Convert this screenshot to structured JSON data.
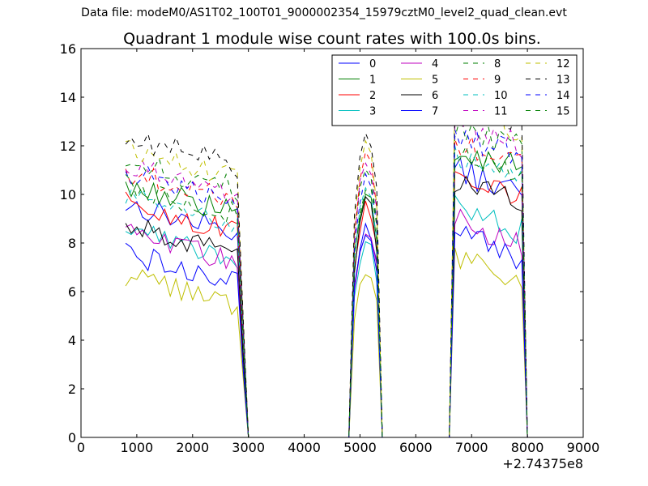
{
  "page": {
    "suptitle": "Data file: modeM0/AS1T02_100T01_9000002354_15979cztM0_level2_quad_clean.evt"
  },
  "chart_data": {
    "type": "line",
    "title": "Quadrant 1 module wise count rates with 100.0s bins.",
    "xlabel": "",
    "ylabel": "",
    "x_offset_label": "+2.74375e8",
    "xlim": [
      0,
      9000
    ],
    "ylim": [
      0,
      16
    ],
    "xticks": [
      0,
      1000,
      2000,
      3000,
      4000,
      5000,
      6000,
      7000,
      8000,
      9000
    ],
    "yticks": [
      0,
      2,
      4,
      6,
      8,
      10,
      12,
      14,
      16
    ],
    "grid": false,
    "legend_position": "top-right",
    "legend_columns": 4,
    "segments": [
      {
        "start": 800,
        "end": 2800,
        "step": 100
      },
      {
        "start": 4900,
        "end": 5300,
        "step": 100
      },
      {
        "start": 6700,
        "end": 7900,
        "step": 100
      }
    ],
    "edge_points": [
      2900,
      3000,
      4800,
      5400,
      6600,
      8000
    ],
    "series": [
      {
        "name": "0",
        "color": "#0000ff",
        "dash": "solid",
        "level": 9.0,
        "peak": 8.8,
        "p3": 10.5
      },
      {
        "name": "1",
        "color": "#007f00",
        "dash": "solid",
        "level": 9.8,
        "peak": 10.2,
        "p3": 11.5
      },
      {
        "name": "2",
        "color": "#ff0000",
        "dash": "solid",
        "level": 9.0,
        "peak": 9.5,
        "p3": 10.5
      },
      {
        "name": "3",
        "color": "#00bfbf",
        "dash": "solid",
        "level": 8.0,
        "peak": 8.0,
        "p3": 9.0
      },
      {
        "name": "4",
        "color": "#bf00bf",
        "dash": "solid",
        "level": 7.8,
        "peak": 8.5,
        "p3": 8.5
      },
      {
        "name": "5",
        "color": "#bfbf00",
        "dash": "solid",
        "level": 6.0,
        "peak": 7.0,
        "p3": 7.0
      },
      {
        "name": "6",
        "color": "#000000",
        "dash": "solid",
        "level": 8.2,
        "peak": 9.8,
        "p3": 10.0
      },
      {
        "name": "7",
        "color": "#0000ff",
        "dash": "solid",
        "level": 7.0,
        "peak": 8.4,
        "p3": 7.8
      },
      {
        "name": "8",
        "color": "#007f00",
        "dash": "dashed",
        "level": 10.8,
        "peak": 11.3,
        "p3": 12.4
      },
      {
        "name": "9",
        "color": "#ff0000",
        "dash": "dashed",
        "level": 10.3,
        "peak": 11.6,
        "p3": 11.8
      },
      {
        "name": "10",
        "color": "#00bfbf",
        "dash": "dashed",
        "level": 9.5,
        "peak": 10.3,
        "p3": 11.0
      },
      {
        "name": "11",
        "color": "#bf00bf",
        "dash": "dashed",
        "level": 10.5,
        "peak": 11.5,
        "p3": 12.5
      },
      {
        "name": "12",
        "color": "#bfbf00",
        "dash": "dashed",
        "level": 11.3,
        "peak": 12.0,
        "p3": 13.2
      },
      {
        "name": "13",
        "color": "#000000",
        "dash": "dashed",
        "level": 11.8,
        "peak": 12.5,
        "p3": 13.5
      },
      {
        "name": "14",
        "color": "#0000ff",
        "dash": "dashed",
        "level": 10.3,
        "peak": 11.0,
        "p3": 12.0
      },
      {
        "name": "15",
        "color": "#007f00",
        "dash": "dashed",
        "level": 9.8,
        "peak": 10.5,
        "p3": 11.2
      }
    ]
  }
}
